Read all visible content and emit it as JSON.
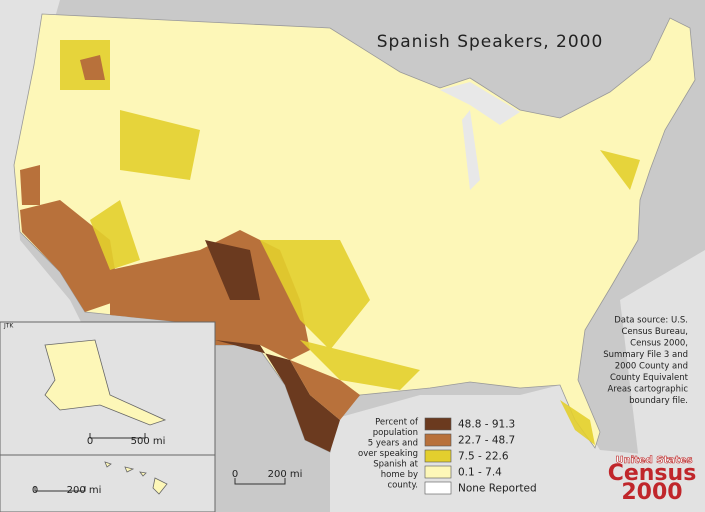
{
  "title": "Spanish Speakers, 2000",
  "data_source": [
    "Data source: U.S.",
    "Census Bureau,",
    "Census 2000,",
    "Summary File 3 and",
    "2000 County and",
    "County Equivalent",
    "Areas cartographic",
    "boundary file."
  ],
  "legend": {
    "title": [
      "Percent of",
      "population",
      "5 years and",
      "over speaking",
      "Spanish at",
      "home by",
      "county."
    ],
    "classes": [
      {
        "label": "48.8 - 91.3",
        "color": "#6b3a1f"
      },
      {
        "label": "22.7 - 48.7",
        "color": "#b8713b"
      },
      {
        "label": "7.5 - 22.6",
        "color": "#e3cf2e"
      },
      {
        "label": "0.1 - 7.4",
        "color": "#fdf7b8"
      },
      {
        "label": "None Reported",
        "color": "#ffffff"
      }
    ]
  },
  "scale_bars": {
    "alaska": [
      "0",
      "500 mi"
    ],
    "hawaii": [
      "0",
      "200 mi"
    ],
    "main": [
      "0",
      "200 mi"
    ]
  },
  "credit": "JTK",
  "logo": {
    "top": "United States",
    "middle": "Census",
    "bottom": "2000"
  }
}
